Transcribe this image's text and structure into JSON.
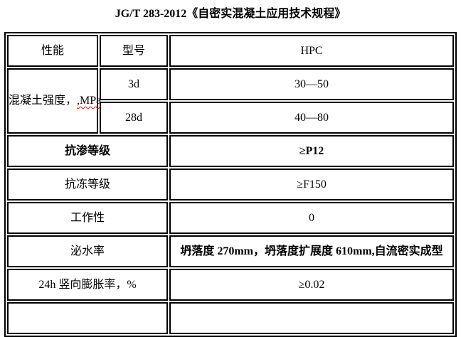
{
  "title": "JG/T 283-2012《自密实混凝土应用技术规程》",
  "table": {
    "header": {
      "performance": "性能",
      "model": "型号",
      "type": "HPC"
    },
    "strength": {
      "label": "混凝土强度，",
      "unit": ",MPa",
      "rows": [
        {
          "age": "3d",
          "value": "30—50"
        },
        {
          "age": "28d",
          "value": "40—80"
        }
      ]
    },
    "spec_rows": [
      {
        "label": "抗渗等级",
        "value": "≥P12"
      },
      {
        "label": "抗冻等级",
        "value": "≥F150"
      },
      {
        "label": "工作性",
        "value": "0"
      },
      {
        "label": "泌水率",
        "value": "坍落度 270mm，坍落度扩展度 610mm,自流密实成型"
      },
      {
        "label": "24h 竖向膨胀率，%",
        "value": "≥0.02"
      }
    ]
  },
  "colors": {
    "text": "#000000",
    "border": "#000000",
    "background": "#ffffff",
    "misspell_underline": "#ff0000"
  }
}
